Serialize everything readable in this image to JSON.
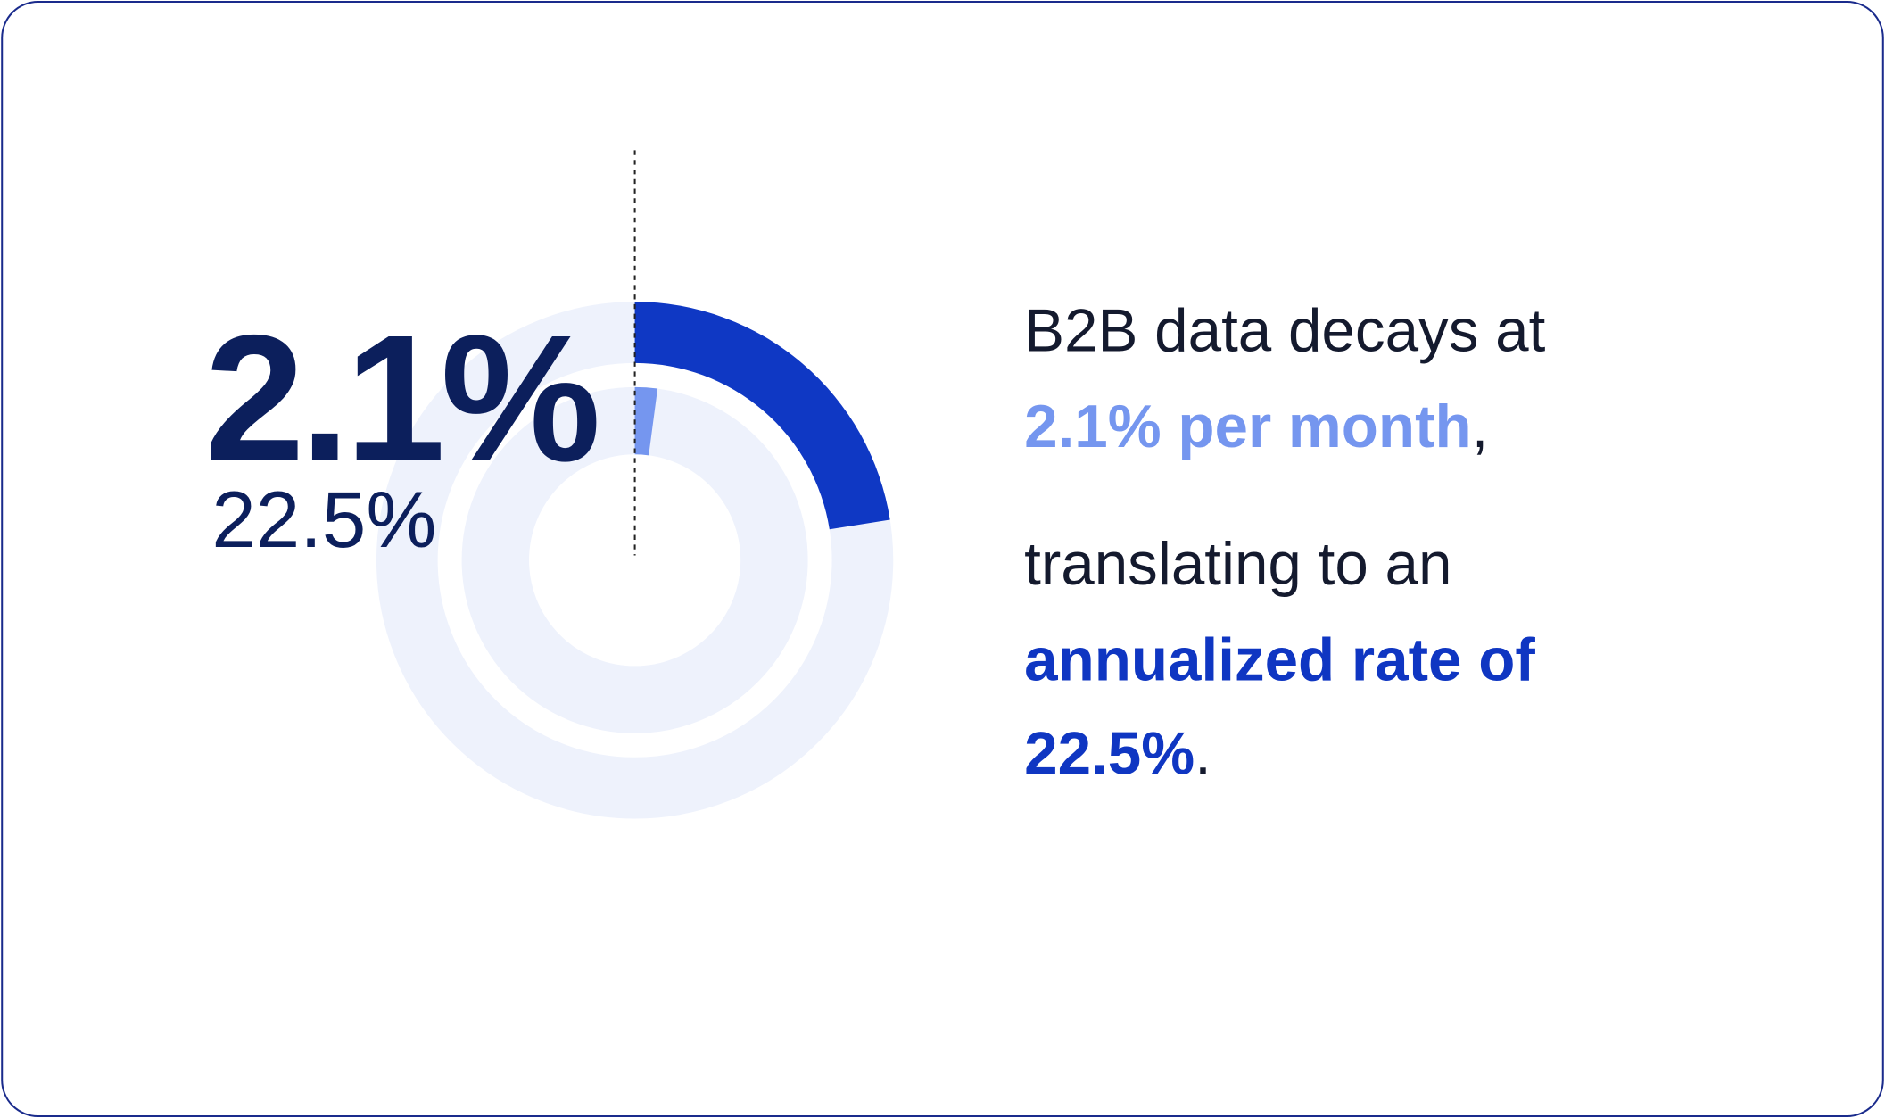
{
  "chart_data": {
    "type": "donut",
    "values": [
      22.5,
      2.1
    ],
    "value_labels": [
      "22.5%",
      "2.1%"
    ],
    "colors": [
      "#0f38c4",
      "#7596ef"
    ],
    "track_color": "#eef2fc"
  },
  "caption": {
    "line1": "B2B data decays at",
    "highlight1": "2.1% per month",
    "comma": ",",
    "line2": "translating to an",
    "highlight2": "annualized rate of",
    "highlight3": "22.5%",
    "period": "."
  }
}
